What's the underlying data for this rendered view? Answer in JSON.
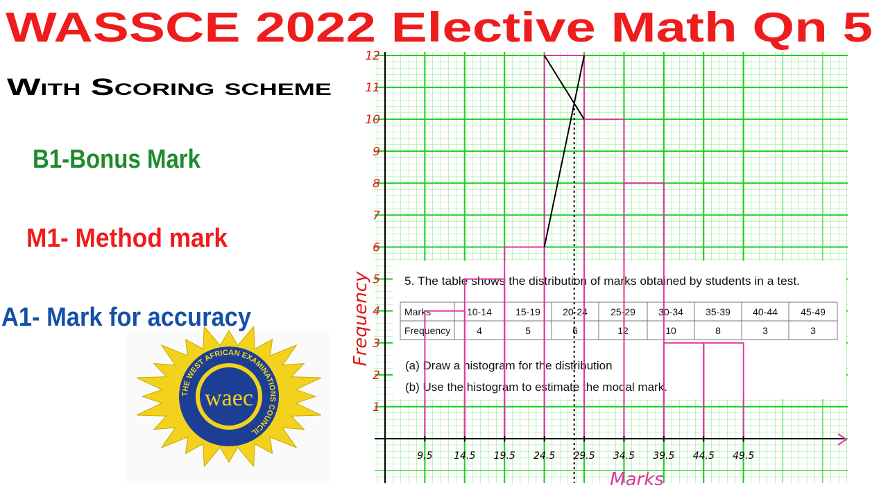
{
  "header": {
    "title": "WASSCE 2022 Elective Math Qn 5",
    "subtitle": "With Scoring scheme"
  },
  "scheme": [
    "B1-Bonus Mark",
    "M1- Method mark",
    "A1- Mark for accuracy"
  ],
  "logo": {
    "mark": "waec",
    "ring": "THE WEST AFRICAN EXAMINATIONS COUNCIL"
  },
  "question": {
    "text": "5. The table shows the distribution of marks obtained by students in a test.",
    "table": {
      "rows": [
        [
          "Marks",
          "10-14",
          "15-19",
          "20-24",
          "25-29",
          "30-34",
          "35-39",
          "40-44",
          "45-49"
        ],
        [
          "Frequency",
          4,
          5,
          6,
          12,
          10,
          8,
          3,
          3
        ]
      ]
    },
    "parts": [
      "(a) Draw a histogram for the distribution",
      "(b)  Use the histogram to estimate the modal mark."
    ]
  },
  "chart_data": {
    "type": "histogram",
    "xlabel": "Marks",
    "ylabel": "Frequency",
    "bins": [
      9.5,
      14.5,
      19.5,
      24.5,
      29.5,
      34.5,
      39.5,
      44.5,
      49.5
    ],
    "values": [
      4,
      5,
      6,
      12,
      10,
      8,
      3,
      3
    ],
    "color": "#e0369c",
    "xlim": [
      4.5,
      62.5
    ],
    "ylim": [
      0,
      12
    ],
    "xticks": [
      9.5,
      14.5,
      19.5,
      24.5,
      29.5,
      34.5,
      39.5,
      44.5,
      49.5
    ],
    "yticks": [
      1,
      2,
      3,
      4,
      5,
      6,
      7,
      8,
      9,
      10,
      11,
      12
    ],
    "grid": true
  }
}
